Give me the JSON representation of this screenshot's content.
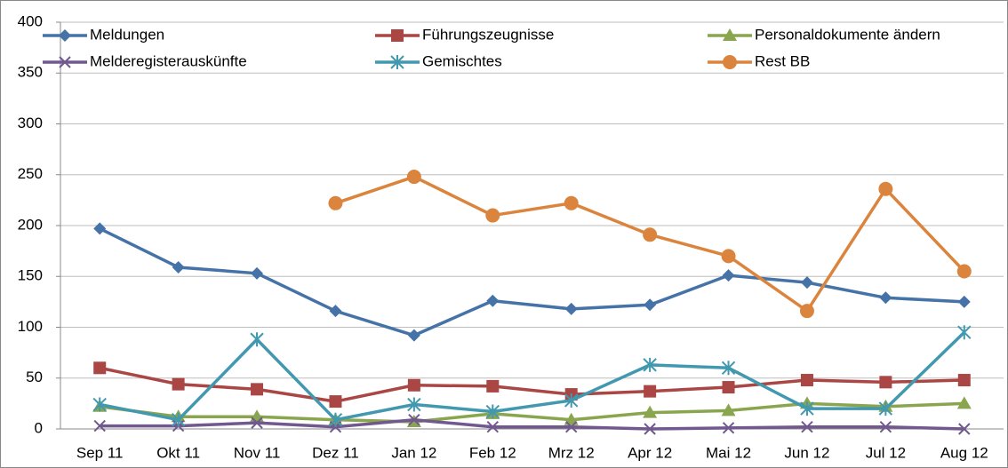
{
  "chart_data": {
    "type": "line",
    "categories": [
      "Sep 11",
      "Okt 11",
      "Nov 11",
      "Dez 11",
      "Jan 12",
      "Feb 12",
      "Mrz 12",
      "Apr 12",
      "Mai 12",
      "Jun 12",
      "Jul 12",
      "Aug 12"
    ],
    "series": [
      {
        "name": "Meldungen",
        "color": "#4572a7",
        "marker": "diamond",
        "values": [
          197,
          159,
          153,
          116,
          92,
          126,
          118,
          122,
          151,
          144,
          129,
          125
        ]
      },
      {
        "name": "Führungszeugnisse",
        "color": "#aa4643",
        "marker": "square",
        "values": [
          60,
          44,
          39,
          27,
          43,
          42,
          34,
          37,
          41,
          48,
          46,
          48
        ]
      },
      {
        "name": "Personaldokumente ändern",
        "color": "#89a54e",
        "marker": "triangle",
        "values": [
          22,
          12,
          12,
          9,
          7,
          15,
          9,
          16,
          18,
          25,
          22,
          25
        ]
      },
      {
        "name": "Melderegisterauskünfte",
        "color": "#71588f",
        "marker": "x",
        "values": [
          3,
          3,
          6,
          2,
          9,
          2,
          2,
          0,
          1,
          2,
          2,
          0
        ]
      },
      {
        "name": "Gemischtes",
        "color": "#4198af",
        "marker": "star",
        "values": [
          24,
          9,
          88,
          9,
          24,
          17,
          28,
          63,
          60,
          20,
          20,
          95
        ]
      },
      {
        "name": "Rest BB",
        "color": "#db843d",
        "marker": "circle",
        "values": [
          null,
          null,
          null,
          222,
          248,
          210,
          222,
          191,
          170,
          116,
          236,
          155
        ]
      }
    ],
    "ylim": [
      0,
      400
    ],
    "yticks": [
      0,
      50,
      100,
      150,
      200,
      250,
      300,
      350,
      400
    ],
    "grid": true,
    "legend": "top"
  }
}
